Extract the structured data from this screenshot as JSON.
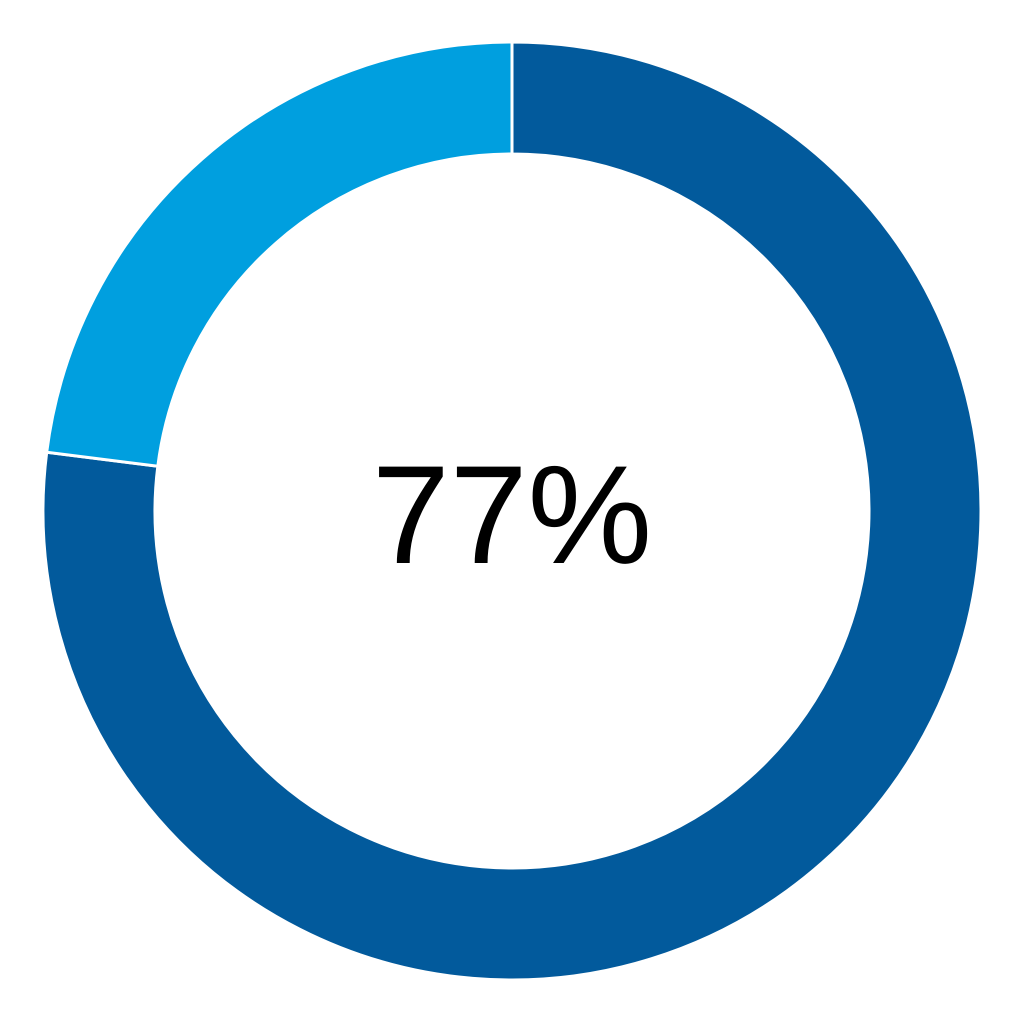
{
  "chart_data": {
    "type": "pie",
    "variant": "donut",
    "center_label": "77%",
    "slices": [
      {
        "value": 77,
        "color": "#025A9C"
      },
      {
        "value": 23,
        "color": "#009FDF"
      }
    ],
    "start_angle": "top",
    "direction": "clockwise"
  }
}
